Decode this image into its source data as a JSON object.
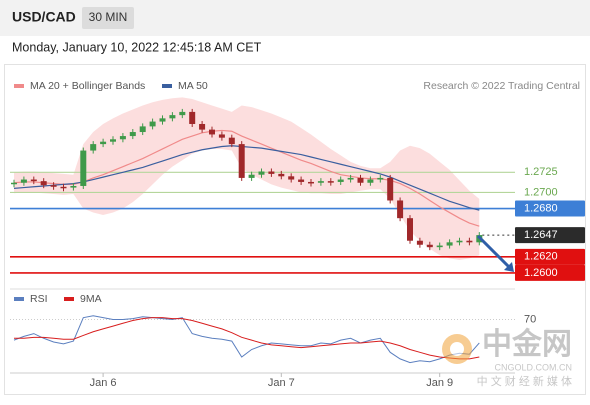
{
  "chart_data": {
    "type": "candlestick",
    "title": "USD/CAD",
    "timeframe": "30 MIN",
    "subtitle": "Monday, January 10, 2022 12:45:18 AM CET",
    "copyright": "Research © 2022 Trading Central",
    "categories": [
      null,
      null,
      null,
      null,
      null,
      null,
      null,
      null,
      null,
      "Jan 6",
      null,
      null,
      null,
      null,
      null,
      null,
      null,
      null,
      null,
      null,
      null,
      null,
      null,
      null,
      null,
      null,
      null,
      "Jan 7",
      null,
      null,
      null,
      null,
      null,
      null,
      null,
      null,
      null,
      null,
      null,
      null,
      null,
      null,
      null,
      "Jan 9",
      null,
      null,
      null,
      null
    ],
    "closes": [
      1.2712,
      1.2716,
      1.2714,
      1.2709,
      1.2707,
      1.2706,
      1.2708,
      1.2752,
      1.276,
      1.2763,
      1.2766,
      1.277,
      1.2775,
      1.2782,
      1.2788,
      1.2792,
      1.2796,
      1.28,
      1.2785,
      1.2778,
      1.2772,
      1.2768,
      1.276,
      1.2718,
      1.2722,
      1.2726,
      1.2723,
      1.272,
      1.2716,
      1.2713,
      1.2712,
      1.2714,
      1.2713,
      1.2716,
      1.2718,
      1.2712,
      1.2716,
      1.2718,
      1.269,
      1.2668,
      1.264,
      1.2635,
      1.2632,
      1.2634,
      1.2638,
      1.264,
      1.2638,
      1.2647
    ],
    "up_color": "#3f9a4a",
    "down_color": "#a0282a",
    "series": [
      {
        "name": "MA 20 + Bollinger Bands",
        "color": "#f08a8a",
        "band_color": "#fbd3d3",
        "values": [
          1.2712,
          1.2713,
          1.2713,
          1.2712,
          1.2711,
          1.271,
          1.271,
          1.2713,
          1.2718,
          1.2722,
          1.2727,
          1.2732,
          1.2737,
          1.2742,
          1.2748,
          1.2754,
          1.276,
          1.2766,
          1.277,
          1.2774,
          1.2776,
          1.2777,
          1.2776,
          1.277,
          1.2765,
          1.276,
          1.2755,
          1.275,
          1.2745,
          1.274,
          1.2736,
          1.2731,
          1.2726,
          1.2722,
          1.272,
          1.2718,
          1.2717,
          1.2717,
          1.2715,
          1.2711,
          1.2705,
          1.2698,
          1.269,
          1.2682,
          1.2675,
          1.2668,
          1.2662,
          1.2658
        ],
        "upper": [
          1.2725,
          1.2726,
          1.2726,
          1.2725,
          1.2724,
          1.2723,
          1.2722,
          1.276,
          1.2775,
          1.2785,
          1.2792,
          1.2798,
          1.2803,
          1.2808,
          1.2812,
          1.2815,
          1.2817,
          1.2818,
          1.2816,
          1.2812,
          1.2808,
          1.2804,
          1.28,
          1.2808,
          1.2806,
          1.2802,
          1.2798,
          1.2793,
          1.2788,
          1.278,
          1.2772,
          1.2763,
          1.2754,
          1.2746,
          1.2738,
          1.2733,
          1.273,
          1.273,
          1.2738,
          1.2752,
          1.2758,
          1.2755,
          1.2748,
          1.2738,
          1.2728,
          1.2715,
          1.2702,
          1.2692
        ],
        "lower": [
          1.2699,
          1.27,
          1.27,
          1.2699,
          1.2698,
          1.2697,
          1.2698,
          1.268,
          1.2675,
          1.2672,
          1.2675,
          1.268,
          1.2688,
          1.2698,
          1.271,
          1.2722,
          1.2732,
          1.274,
          1.2748,
          1.2752,
          1.2754,
          1.2754,
          1.2752,
          1.273,
          1.2722,
          1.2716,
          1.271,
          1.2706,
          1.2703,
          1.27,
          1.2699,
          1.2699,
          1.2698,
          1.2698,
          1.27,
          1.2702,
          1.2704,
          1.2704,
          1.2692,
          1.2672,
          1.2652,
          1.264,
          1.263,
          1.2622,
          1.2618,
          1.2616,
          1.2618,
          1.2622
        ]
      },
      {
        "name": "MA 50",
        "color": "#3a5f9f",
        "values": [
          1.2705,
          1.2706,
          1.2707,
          1.2708,
          1.2709,
          1.271,
          1.2711,
          1.2713,
          1.2716,
          1.2719,
          1.2722,
          1.2725,
          1.2728,
          1.2731,
          1.2735,
          1.2739,
          1.2743,
          1.2747,
          1.275,
          1.2753,
          1.2755,
          1.2757,
          1.2758,
          1.2757,
          1.2756,
          1.2755,
          1.2753,
          1.2751,
          1.2749,
          1.2747,
          1.2744,
          1.2741,
          1.2738,
          1.2735,
          1.2732,
          1.2729,
          1.2726,
          1.2723,
          1.2719,
          1.2714,
          1.2709,
          1.2704,
          1.2699,
          1.2694,
          1.2689,
          1.2685,
          1.2681,
          1.2678
        ]
      }
    ],
    "ylim": [
      1.2585,
      1.2821
    ],
    "levels": [
      {
        "value": 1.2725,
        "label": "1.2725",
        "color": "#b5d69b",
        "text_color": "#6aa84f",
        "kind": "text"
      },
      {
        "value": 1.27,
        "label": "1.2700",
        "color": "#b5d69b",
        "text_color": "#6aa84f",
        "kind": "text"
      },
      {
        "value": 1.268,
        "label": "1.2680",
        "color": "#3d7fd6",
        "text_color": "#ffffff",
        "kind": "box"
      },
      {
        "value": 1.2647,
        "label": "1.2647",
        "color": "#2b2b2b",
        "text_color": "#ffffff",
        "kind": "current"
      },
      {
        "value": 1.262,
        "label": "1.2620",
        "color": "#e01010",
        "text_color": "#ffffff",
        "kind": "box"
      },
      {
        "value": 1.26,
        "label": "1.2600",
        "color": "#e01010",
        "text_color": "#ffffff",
        "kind": "box"
      }
    ],
    "rsi": {
      "ylim": [
        14,
        93
      ],
      "yticks": [
        70
      ],
      "series": [
        {
          "name": "RSI",
          "color": "#5b7fbf",
          "values": [
            48,
            52,
            55,
            50,
            46,
            44,
            47,
            72,
            74,
            72,
            70,
            70,
            71,
            73,
            72,
            71,
            70,
            72,
            55,
            52,
            50,
            49,
            47,
            30,
            38,
            42,
            45,
            44,
            43,
            42,
            42,
            45,
            44,
            48,
            50,
            45,
            48,
            50,
            35,
            28,
            24,
            26,
            25,
            28,
            32,
            34,
            33,
            45
          ]
        },
        {
          "name": "9MA",
          "color": "#d81e1e",
          "values": [
            50,
            50,
            51,
            51,
            50,
            49,
            49,
            53,
            57,
            60,
            63,
            66,
            69,
            71,
            72,
            72,
            71,
            71,
            69,
            66,
            63,
            60,
            56,
            51,
            48,
            45,
            43,
            42,
            41,
            40,
            41,
            42,
            43,
            44,
            45,
            45,
            46,
            47,
            45,
            42,
            38,
            35,
            32,
            30,
            29,
            28,
            28,
            30
          ]
        }
      ]
    },
    "watermark": {
      "logo": "中金网",
      "site": "CNGOLD.COM.CN",
      "tagline": "中 文 财 经 新 媒 体"
    }
  }
}
